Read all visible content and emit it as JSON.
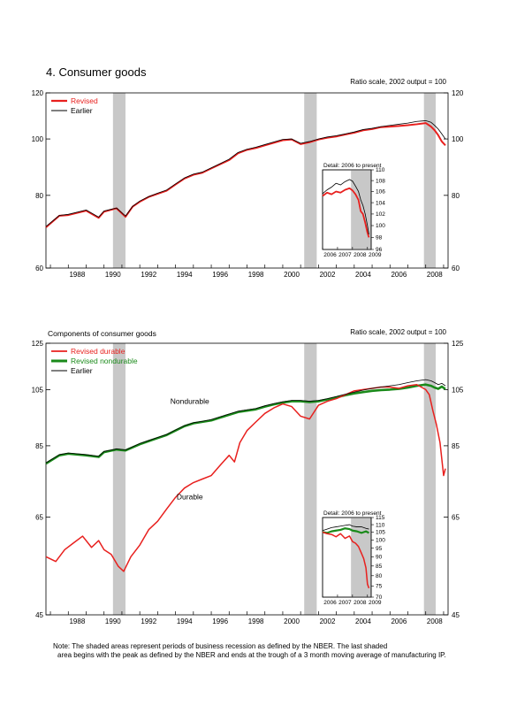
{
  "colors": {
    "revised": "#e8201e",
    "revised_nondurable": "#1a8a1a",
    "earlier": "#000000",
    "recession_shade": "#c8c8c8"
  },
  "note": {
    "line1": "Note: The shaded areas represent periods of business recession as defined by the NBER.  The last shaded",
    "line2": "area begins with the peak as defined by the NBER and ends at the trough of a 3 month moving average of manufacturing IP."
  },
  "chart_data": [
    {
      "type": "line",
      "title": "4. Consumer goods",
      "subtitle": "Ratio scale, 2002 output = 100",
      "y_scale": "log",
      "ylim": [
        60,
        120
      ],
      "yticks": [
        60,
        80,
        100,
        120
      ],
      "xlim": [
        1986.75,
        2009.25
      ],
      "xticks": [
        "1988",
        "1990",
        "1992",
        "1994",
        "1996",
        "1998",
        "2000",
        "2002",
        "2004",
        "2006",
        "2008"
      ],
      "recessions": [
        [
          1990.5,
          1991.2
        ],
        [
          2001.2,
          2001.9
        ],
        [
          2007.9,
          2009.25
        ]
      ],
      "legend": {
        "placement": "top-left",
        "entries": [
          "Revised",
          "Earlier"
        ]
      },
      "series": [
        {
          "name": "Revised",
          "color": "#e8201e",
          "x": [
            1986.75,
            1987.5,
            1988.0,
            1989.0,
            1989.7,
            1990.0,
            1990.7,
            1991.2,
            1991.6,
            1992.0,
            1992.5,
            1993.0,
            1993.5,
            1994.0,
            1994.5,
            1995.0,
            1995.5,
            1996.0,
            1996.5,
            1997.0,
            1997.5,
            1998.0,
            1998.5,
            1999.0,
            1999.5,
            2000.0,
            2000.5,
            2001.0,
            2001.5,
            2002.0,
            2002.5,
            2003.0,
            2003.5,
            2004.0,
            2004.5,
            2005.0,
            2005.5,
            2006.0,
            2006.5,
            2007.0,
            2007.5,
            2008.0,
            2008.3,
            2008.5,
            2008.7,
            2008.9,
            2009.1
          ],
          "values": [
            70.5,
            73.8,
            74.0,
            75.3,
            73.2,
            75.0,
            76.0,
            73.5,
            76.5,
            78.0,
            79.5,
            80.5,
            81.5,
            83.5,
            85.5,
            86.8,
            87.5,
            89.0,
            90.5,
            92.0,
            94.5,
            95.8,
            96.5,
            97.5,
            98.5,
            99.5,
            99.8,
            98.0,
            98.7,
            99.8,
            100.5,
            101.0,
            101.8,
            102.5,
            103.5,
            104.0,
            104.8,
            105.0,
            105.3,
            105.6,
            106.0,
            106.5,
            105.0,
            103.5,
            101.5,
            99.0,
            97.5
          ]
        },
        {
          "name": "Earlier",
          "color": "#000000",
          "x": [
            1986.75,
            1987.5,
            1988.0,
            1989.0,
            1989.7,
            1990.0,
            1990.7,
            1991.2,
            1991.6,
            1992.0,
            1992.5,
            1993.0,
            1993.5,
            1994.0,
            1994.5,
            1995.0,
            1995.5,
            1996.0,
            1996.5,
            1997.0,
            1997.5,
            1998.0,
            1998.5,
            1999.0,
            1999.5,
            2000.0,
            2000.5,
            2001.0,
            2001.5,
            2002.0,
            2002.5,
            2003.0,
            2003.5,
            2004.0,
            2004.5,
            2005.0,
            2005.5,
            2006.0,
            2006.5,
            2007.0,
            2007.5,
            2008.0,
            2008.3,
            2008.5,
            2008.7,
            2008.9,
            2009.1
          ],
          "values": [
            70.7,
            73.9,
            74.2,
            75.5,
            73.4,
            75.2,
            76.1,
            73.7,
            76.6,
            78.2,
            79.6,
            80.7,
            81.7,
            83.7,
            85.7,
            87.0,
            87.7,
            89.2,
            90.7,
            92.3,
            94.8,
            96.0,
            96.8,
            97.8,
            98.8,
            99.8,
            100.0,
            98.3,
            99.0,
            100.0,
            100.8,
            101.3,
            102.0,
            102.8,
            103.8,
            104.3,
            105.0,
            105.5,
            106.0,
            106.5,
            107.2,
            107.5,
            106.8,
            105.5,
            104.0,
            102.0,
            100.0
          ]
        }
      ],
      "inset": {
        "title": "Detail: 2006 to present",
        "y_scale": "log",
        "ylim": [
          96,
          110
        ],
        "yticks": [
          96,
          98,
          100,
          102,
          104,
          106,
          108,
          110
        ],
        "xlim": [
          2006.0,
          2009.25
        ],
        "xticks": [
          "2006",
          "2007",
          "2008",
          "2009"
        ],
        "series": [
          {
            "name": "Revised",
            "color": "#e8201e",
            "x": [
              2006.0,
              2006.3,
              2006.6,
              2006.9,
              2007.2,
              2007.5,
              2007.8,
              2008.0,
              2008.2,
              2008.4,
              2008.55,
              2008.7,
              2008.85,
              2009.0,
              2009.1
            ],
            "values": [
              105.2,
              105.8,
              105.5,
              106.0,
              105.8,
              106.3,
              106.6,
              106.2,
              105.5,
              104.5,
              102.5,
              102.0,
              100.5,
              98.8,
              98.0
            ]
          },
          {
            "name": "Earlier",
            "color": "#000000",
            "x": [
              2006.0,
              2006.3,
              2006.6,
              2006.9,
              2007.2,
              2007.5,
              2007.8,
              2008.0,
              2008.2,
              2008.4,
              2008.55,
              2008.7,
              2008.85,
              2009.0,
              2009.1
            ],
            "values": [
              105.6,
              106.3,
              106.8,
              107.5,
              107.2,
              107.8,
              108.2,
              107.9,
              107.0,
              106.0,
              104.5,
              103.5,
              102.0,
              100.0,
              98.5
            ]
          }
        ]
      }
    },
    {
      "type": "line",
      "title": "Components of consumer goods",
      "subtitle": "Ratio scale, 2002 output = 100",
      "y_scale": "log",
      "ylim": [
        45,
        125
      ],
      "yticks": [
        45,
        65,
        85,
        105,
        125
      ],
      "xlim": [
        1986.75,
        2009.25
      ],
      "xticks": [
        "1988",
        "1990",
        "1992",
        "1994",
        "1996",
        "1998",
        "2000",
        "2002",
        "2004",
        "2006",
        "2008"
      ],
      "recessions": [
        [
          1990.5,
          1991.2
        ],
        [
          2001.2,
          2001.9
        ],
        [
          2007.9,
          2009.25
        ]
      ],
      "legend": {
        "placement": "top-left",
        "entries": [
          "Revised durable",
          "Revised nondurable",
          "Earlier"
        ]
      },
      "annotations": [
        {
          "text": "Nondurable",
          "x": 1994.8,
          "y": 99.5
        },
        {
          "text": "Durable",
          "x": 1994.8,
          "y": 69.5
        }
      ],
      "series": [
        {
          "name": "Revised durable",
          "color": "#e8201e",
          "x": [
            1986.75,
            1987.3,
            1987.8,
            1988.3,
            1988.8,
            1989.3,
            1989.7,
            1990.0,
            1990.4,
            1990.8,
            1991.1,
            1991.5,
            1992.0,
            1992.5,
            1993.0,
            1993.5,
            1994.0,
            1994.5,
            1995.0,
            1995.5,
            1996.0,
            1996.5,
            1997.0,
            1997.3,
            1997.6,
            1998.0,
            1998.5,
            1999.0,
            1999.5,
            2000.0,
            2000.5,
            2001.0,
            2001.5,
            2002.0,
            2002.5,
            2003.0,
            2003.5,
            2004.0,
            2004.5,
            2005.0,
            2005.5,
            2006.0,
            2006.5,
            2007.0,
            2007.5,
            2008.0,
            2008.2,
            2008.4,
            2008.6,
            2008.8,
            2009.0,
            2009.1
          ],
          "values": [
            56.0,
            55.0,
            57.5,
            59.0,
            60.5,
            58.0,
            59.5,
            57.5,
            56.5,
            54.0,
            53.0,
            56.0,
            58.5,
            62.0,
            64.0,
            67.0,
            70.0,
            72.5,
            74.0,
            75.0,
            76.0,
            79.0,
            82.0,
            80.0,
            86.0,
            90.0,
            93.0,
            96.0,
            98.0,
            99.5,
            98.5,
            95.0,
            94.0,
            99.0,
            100.5,
            101.5,
            103.0,
            104.5,
            105.0,
            105.5,
            106.0,
            106.0,
            105.5,
            106.5,
            107.0,
            105.0,
            103.0,
            97.0,
            92.0,
            86.0,
            76.0,
            78.0
          ]
        },
        {
          "name": "Revised nondurable",
          "color": "#1a8a1a",
          "x": [
            1986.75,
            1987.5,
            1988.0,
            1989.0,
            1989.7,
            1990.0,
            1990.7,
            1991.2,
            1991.6,
            1992.0,
            1992.5,
            1993.0,
            1993.5,
            1994.0,
            1994.5,
            1995.0,
            1995.5,
            1996.0,
            1996.5,
            1997.0,
            1997.5,
            1998.0,
            1998.5,
            1999.0,
            1999.5,
            2000.0,
            2000.5,
            2001.0,
            2001.5,
            2002.0,
            2002.5,
            2003.0,
            2003.5,
            2004.0,
            2004.5,
            2005.0,
            2005.5,
            2006.0,
            2006.5,
            2007.0,
            2007.5,
            2008.0,
            2008.3,
            2008.5,
            2008.7,
            2008.9,
            2009.1
          ],
          "values": [
            79.5,
            82.0,
            82.5,
            82.0,
            81.5,
            83.0,
            83.8,
            83.5,
            84.5,
            85.5,
            86.5,
            87.5,
            88.5,
            90.0,
            91.5,
            92.5,
            93.0,
            93.5,
            94.5,
            95.5,
            96.5,
            97.0,
            97.5,
            98.5,
            99.3,
            100.0,
            100.5,
            100.5,
            100.2,
            100.5,
            101.2,
            102.0,
            102.8,
            103.5,
            104.0,
            104.5,
            104.8,
            105.0,
            105.3,
            105.8,
            106.5,
            107.0,
            106.5,
            105.8,
            105.3,
            106.2,
            105.2
          ]
        },
        {
          "name": "Earlier",
          "color": "#000000",
          "x": [
            1986.75,
            1987.5,
            1988.0,
            1989.0,
            1989.7,
            1990.0,
            1990.7,
            1991.2,
            1991.6,
            1992.0,
            1992.5,
            1993.0,
            1993.5,
            1994.0,
            1994.5,
            1995.0,
            1995.5,
            1996.0,
            1996.5,
            1997.0,
            1997.5,
            1998.0,
            1998.5,
            1999.0,
            1999.5,
            2000.0,
            2000.5,
            2001.0,
            2001.5,
            2002.0,
            2002.5,
            2003.0,
            2003.5,
            2004.0,
            2004.5,
            2005.0,
            2005.5,
            2006.0,
            2006.5,
            2007.0,
            2007.5,
            2008.0,
            2008.3,
            2008.5,
            2008.7,
            2008.9,
            2009.1
          ],
          "values": [
            79.7,
            82.2,
            82.7,
            82.2,
            81.7,
            83.2,
            84.0,
            83.7,
            84.7,
            85.7,
            86.7,
            87.7,
            88.7,
            90.2,
            91.7,
            92.7,
            93.2,
            93.8,
            94.8,
            95.8,
            96.8,
            97.3,
            97.8,
            98.8,
            99.6,
            100.3,
            100.8,
            100.8,
            100.5,
            100.8,
            101.5,
            102.3,
            103.2,
            104.0,
            104.8,
            105.5,
            106.0,
            106.5,
            107.0,
            107.8,
            108.5,
            109.0,
            108.5,
            107.8,
            107.0,
            107.5,
            106.5
          ]
        }
      ],
      "inset": {
        "title": "Detail: 2006 to present",
        "y_scale": "log",
        "ylim": [
          70,
          115
        ],
        "yticks": [
          70,
          75,
          80,
          85,
          90,
          95,
          100,
          105,
          110,
          115
        ],
        "xlim": [
          2006.0,
          2009.25
        ],
        "xticks": [
          "2006",
          "2007",
          "2008",
          "2009"
        ],
        "series": [
          {
            "name": "Revised durable",
            "color": "#e8201e",
            "x": [
              2006.0,
              2006.3,
              2006.6,
              2006.9,
              2007.2,
              2007.5,
              2007.8,
              2008.0,
              2008.2,
              2008.4,
              2008.6,
              2008.75,
              2008.9,
              2009.0,
              2009.1
            ],
            "values": [
              105.0,
              104.0,
              103.5,
              102.0,
              104.0,
              101.0,
              102.5,
              99.0,
              98.0,
              96.0,
              92.0,
              89.0,
              84.0,
              76.0,
              74.0
            ]
          },
          {
            "name": "Revised nondurable",
            "color": "#1a8a1a",
            "x": [
              2006.0,
              2006.3,
              2006.6,
              2006.9,
              2007.2,
              2007.5,
              2007.8,
              2008.0,
              2008.3,
              2008.6,
              2008.9,
              2009.1
            ],
            "values": [
              105.0,
              104.5,
              105.5,
              106.0,
              106.5,
              107.5,
              107.0,
              106.0,
              105.5,
              104.5,
              105.5,
              104.5
            ]
          },
          {
            "name": "Earlier",
            "color": "#000000",
            "x": [
              2006.0,
              2006.3,
              2006.6,
              2006.9,
              2007.2,
              2007.5,
              2007.8,
              2008.0,
              2008.3,
              2008.6,
              2008.9,
              2009.1
            ],
            "values": [
              106.0,
              107.0,
              108.0,
              108.5,
              109.0,
              109.5,
              110.0,
              109.0,
              108.5,
              108.5,
              107.5,
              107.0
            ]
          }
        ]
      }
    }
  ]
}
